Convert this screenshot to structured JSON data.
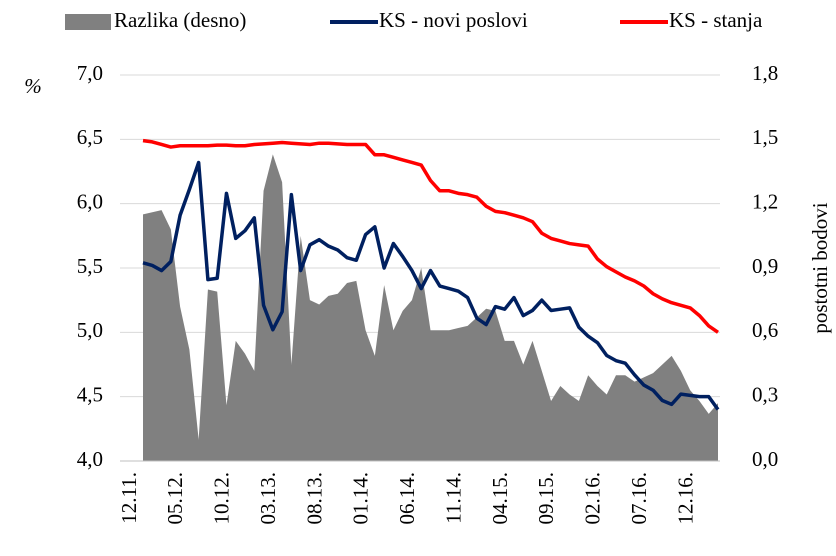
{
  "chart_data": {
    "type": "line",
    "y_label": "%",
    "y2_label": "postotni bodovi",
    "categories": [
      "12.11.",
      null,
      null,
      null,
      null,
      "05.12.",
      null,
      null,
      null,
      null,
      "10.12.",
      null,
      null,
      null,
      null,
      "03.13.",
      null,
      null,
      null,
      null,
      "08.13.",
      null,
      null,
      null,
      null,
      "01.14.",
      null,
      null,
      null,
      null,
      "06.14.",
      null,
      null,
      null,
      null,
      "11.14.",
      null,
      null,
      null,
      null,
      "04.15.",
      null,
      null,
      null,
      null,
      "09.15.",
      null,
      null,
      null,
      null,
      "02.16.",
      null,
      null,
      null,
      null,
      "07.16.",
      null,
      null,
      null,
      null,
      "12.16.",
      null,
      null
    ],
    "series": [
      {
        "name": "Razlika (desno)",
        "type": "area",
        "axis": "y2",
        "color": "#808080",
        "values": [
          1.15,
          1.16,
          1.17,
          1.08,
          0.72,
          0.52,
          0.1,
          0.8,
          0.79,
          0.26,
          0.56,
          0.5,
          0.42,
          1.26,
          1.43,
          1.3,
          0.45,
          1.05,
          0.75,
          0.73,
          0.77,
          0.78,
          0.83,
          0.84,
          0.61,
          0.49,
          0.82,
          0.61,
          0.7,
          0.75,
          0.9,
          0.61,
          0.61,
          0.61,
          0.62,
          0.63,
          0.67,
          0.71,
          0.7,
          0.56,
          0.56,
          0.45,
          0.56,
          0.42,
          0.28,
          0.35,
          0.31,
          0.28,
          0.4,
          0.35,
          0.31,
          0.4,
          0.4,
          0.37,
          0.39,
          0.41,
          0.45,
          0.49,
          0.42,
          0.33,
          0.28,
          0.22,
          0.27
        ]
      },
      {
        "name": "KS - novi poslovi",
        "type": "line",
        "axis": "y",
        "color": "#002060",
        "values": [
          5.54,
          5.52,
          5.48,
          5.55,
          5.91,
          6.11,
          6.32,
          5.41,
          5.42,
          6.08,
          5.73,
          5.79,
          5.89,
          5.21,
          5.02,
          5.16,
          6.07,
          5.48,
          5.68,
          5.72,
          5.67,
          5.64,
          5.58,
          5.56,
          5.76,
          5.82,
          5.5,
          5.69,
          5.59,
          5.48,
          5.34,
          5.48,
          5.36,
          5.34,
          5.32,
          5.27,
          5.11,
          5.06,
          5.2,
          5.18,
          5.27,
          5.13,
          5.17,
          5.25,
          5.17,
          5.18,
          5.19,
          5.04,
          4.97,
          4.92,
          4.82,
          4.78,
          4.76,
          4.67,
          4.59,
          4.55,
          4.47,
          4.44,
          4.52,
          4.51,
          4.5,
          4.5,
          4.4
        ]
      },
      {
        "name": "KS - stanja",
        "type": "line",
        "axis": "y",
        "color": "#ff0000",
        "values": [
          6.49,
          6.48,
          6.46,
          6.44,
          6.45,
          6.45,
          6.45,
          6.45,
          6.455,
          6.455,
          6.45,
          6.45,
          6.46,
          6.465,
          6.47,
          6.475,
          6.47,
          6.465,
          6.46,
          6.47,
          6.47,
          6.465,
          6.46,
          6.46,
          6.46,
          6.38,
          6.38,
          6.36,
          6.34,
          6.32,
          6.3,
          6.18,
          6.1,
          6.1,
          6.08,
          6.07,
          6.05,
          5.98,
          5.94,
          5.93,
          5.91,
          5.89,
          5.86,
          5.77,
          5.73,
          5.71,
          5.69,
          5.68,
          5.67,
          5.57,
          5.51,
          5.47,
          5.43,
          5.4,
          5.36,
          5.3,
          5.26,
          5.23,
          5.21,
          5.19,
          5.13,
          5.05,
          5.0
        ]
      }
    ],
    "ylim": [
      4,
      7
    ],
    "yticks": [
      {
        "value": 4,
        "label": "4,0"
      },
      {
        "value": 4.5,
        "label": "4,5"
      },
      {
        "value": 5,
        "label": "5,0"
      },
      {
        "value": 5.5,
        "label": "5,5"
      },
      {
        "value": 6,
        "label": "6,0"
      },
      {
        "value": 6.5,
        "label": "6,5"
      },
      {
        "value": 7,
        "label": "7,0"
      }
    ],
    "y2lim": [
      0,
      1.8
    ],
    "y2ticks": [
      {
        "value": 0,
        "label": "0,0"
      },
      {
        "value": 0.3,
        "label": "0,3"
      },
      {
        "value": 0.6,
        "label": "0,6"
      },
      {
        "value": 0.9,
        "label": "0,9"
      },
      {
        "value": 1.2,
        "label": "1,2"
      },
      {
        "value": 1.5,
        "label": "1,5"
      },
      {
        "value": 1.8,
        "label": "1,8"
      }
    ],
    "grid": true,
    "legend": "top"
  }
}
